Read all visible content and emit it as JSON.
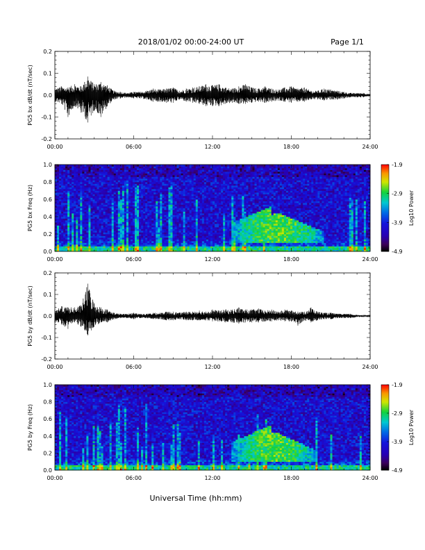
{
  "header": {
    "title": "2018/01/02  00:00-24:00 UT",
    "page": "Page 1/1"
  },
  "xlabel": "Universal Time (hh:mm)",
  "chart_data": [
    {
      "type": "line",
      "title": "",
      "ylabel": "PG5 bx dB/dt (nT/sec)",
      "xlabel": "",
      "xlim": [
        0,
        24
      ],
      "ylim": [
        -0.2,
        0.2
      ],
      "xtick_labels": [
        "00:00",
        "06:00",
        "12:00",
        "18:00",
        "24:00"
      ],
      "ytick_labels": [
        "-0.2",
        "-0.1",
        "0.0",
        "0.1",
        "0.2"
      ],
      "grid": false,
      "series": [
        {
          "x_hours": [
            0,
            0.5,
            1,
            1.5,
            2,
            2.5,
            3,
            3.5,
            4,
            4.5,
            5,
            5.5,
            6,
            6.5,
            7,
            7.5,
            8,
            8.5,
            9,
            9.5,
            10,
            10.5,
            11,
            11.5,
            12,
            12.5,
            13,
            13.5,
            14,
            14.5,
            15,
            15.5,
            16,
            16.5,
            17,
            17.5,
            18,
            18.5,
            19,
            19.5,
            20,
            20.5,
            21,
            21.5,
            22,
            22.5,
            23,
            23.5,
            24
          ],
          "max": [
            0.03,
            0.04,
            0.035,
            0.05,
            0.04,
            0.085,
            0.05,
            0.06,
            0.045,
            0.02,
            0.015,
            0.01,
            0.015,
            0.015,
            0.02,
            0.03,
            0.025,
            0.03,
            0.035,
            0.02,
            0.03,
            0.035,
            0.04,
            0.05,
            0.045,
            0.05,
            0.035,
            0.03,
            0.04,
            0.05,
            0.035,
            0.03,
            0.04,
            0.03,
            0.025,
            0.035,
            0.04,
            0.03,
            0.035,
            0.02,
            0.02,
            0.03,
            0.025,
            0.02,
            0.015,
            0.01,
            0.01,
            0.01,
            0.005
          ],
          "min": [
            -0.03,
            -0.04,
            -0.1,
            -0.05,
            -0.08,
            -0.125,
            -0.07,
            -0.1,
            -0.05,
            -0.02,
            -0.015,
            -0.01,
            -0.015,
            -0.015,
            -0.02,
            -0.03,
            -0.03,
            -0.035,
            -0.035,
            -0.02,
            -0.03,
            -0.035,
            -0.04,
            -0.05,
            -0.05,
            -0.05,
            -0.04,
            -0.035,
            -0.04,
            -0.04,
            -0.035,
            -0.03,
            -0.035,
            -0.03,
            -0.025,
            -0.03,
            -0.035,
            -0.03,
            -0.03,
            -0.02,
            -0.02,
            -0.025,
            -0.02,
            -0.02,
            -0.015,
            -0.01,
            -0.01,
            -0.01,
            -0.005
          ]
        }
      ]
    },
    {
      "type": "heatmap",
      "title": "",
      "ylabel": "PG5 bx Freq (Hz)",
      "xlabel": "",
      "xlim": [
        0,
        24
      ],
      "ylim": [
        0.0,
        1.0
      ],
      "xtick_labels": [
        "00:00",
        "06:00",
        "12:00",
        "18:00",
        "24:00"
      ],
      "ytick_labels": [
        "0.0",
        "0.2",
        "0.4",
        "0.6",
        "0.8",
        "1.0"
      ],
      "colorbar": {
        "label": "Log10 Power",
        "range": [
          -4.9,
          -1.9
        ],
        "tick_labels": [
          "-1.9",
          "-2.9",
          "-3.9",
          "-4.9"
        ]
      },
      "features": {
        "background_power": -4.1,
        "low_freq_band_hz": [
          0.0,
          0.05
        ],
        "low_freq_band_power": -3.2,
        "enhanced_region_hours": [
          13.5,
          20.5
        ],
        "enhanced_region_freq_hz": [
          0.1,
          0.55
        ],
        "enhanced_region_power": -2.8
      }
    },
    {
      "type": "line",
      "title": "",
      "ylabel": "PG5 by dB/dt (nT/sec)",
      "xlabel": "",
      "xlim": [
        0,
        24
      ],
      "ylim": [
        -0.2,
        0.2
      ],
      "xtick_labels": [
        "00:00",
        "06:00",
        "12:00",
        "18:00",
        "24:00"
      ],
      "ytick_labels": [
        "-0.2",
        "-0.1",
        "0.0",
        "0.1",
        "0.2"
      ],
      "grid": false,
      "series": [
        {
          "x_hours": [
            0,
            0.5,
            1,
            1.5,
            2,
            2.5,
            3,
            3.5,
            4,
            4.5,
            5,
            5.5,
            6,
            6.5,
            7,
            7.5,
            8,
            8.5,
            9,
            9.5,
            10,
            10.5,
            11,
            11.5,
            12,
            12.5,
            13,
            13.5,
            14,
            14.5,
            15,
            15.5,
            16,
            16.5,
            17,
            17.5,
            18,
            18.5,
            19,
            19.5,
            20,
            20.5,
            21,
            21.5,
            22,
            22.5,
            23,
            23.5,
            24
          ],
          "max": [
            0.03,
            0.045,
            0.04,
            0.04,
            0.05,
            0.15,
            0.06,
            0.04,
            0.03,
            0.015,
            0.01,
            0.01,
            0.015,
            0.01,
            0.01,
            0.015,
            0.015,
            0.02,
            0.02,
            0.015,
            0.02,
            0.02,
            0.025,
            0.02,
            0.03,
            0.025,
            0.03,
            0.03,
            0.04,
            0.03,
            0.03,
            0.035,
            0.025,
            0.03,
            0.02,
            0.03,
            0.025,
            0.02,
            0.02,
            0.04,
            0.02,
            0.015,
            0.015,
            0.01,
            0.01,
            0.01,
            0.005,
            0.005,
            0.005
          ],
          "min": [
            -0.03,
            -0.04,
            -0.06,
            -0.03,
            -0.05,
            -0.09,
            -0.05,
            -0.03,
            -0.03,
            -0.015,
            -0.01,
            -0.01,
            -0.015,
            -0.01,
            -0.01,
            -0.015,
            -0.015,
            -0.02,
            -0.02,
            -0.015,
            -0.02,
            -0.02,
            -0.02,
            -0.02,
            -0.025,
            -0.025,
            -0.03,
            -0.03,
            -0.035,
            -0.03,
            -0.03,
            -0.03,
            -0.025,
            -0.025,
            -0.02,
            -0.025,
            -0.025,
            -0.045,
            -0.02,
            -0.03,
            -0.02,
            -0.015,
            -0.015,
            -0.01,
            -0.01,
            -0.01,
            -0.005,
            -0.005,
            -0.005
          ]
        }
      ]
    },
    {
      "type": "heatmap",
      "title": "",
      "ylabel": "PG5 by Freq (Hz)",
      "xlabel": "Universal Time (hh:mm)",
      "xlim": [
        0,
        24
      ],
      "ylim": [
        0.0,
        1.0
      ],
      "xtick_labels": [
        "00:00",
        "06:00",
        "12:00",
        "18:00",
        "24:00"
      ],
      "ytick_labels": [
        "0.0",
        "0.2",
        "0.4",
        "0.6",
        "0.8",
        "1.0"
      ],
      "colorbar": {
        "label": "Log10 Power",
        "range": [
          -4.9,
          -1.9
        ],
        "tick_labels": [
          "-1.9",
          "-2.9",
          "-3.9",
          "-4.9"
        ]
      },
      "features": {
        "background_power": -4.1,
        "low_freq_band_hz": [
          0.0,
          0.05
        ],
        "low_freq_band_power": -3.2,
        "enhanced_region_hours": [
          13.5,
          20.0
        ],
        "enhanced_region_freq_hz": [
          0.1,
          0.55
        ],
        "enhanced_region_power": -2.8
      }
    }
  ]
}
